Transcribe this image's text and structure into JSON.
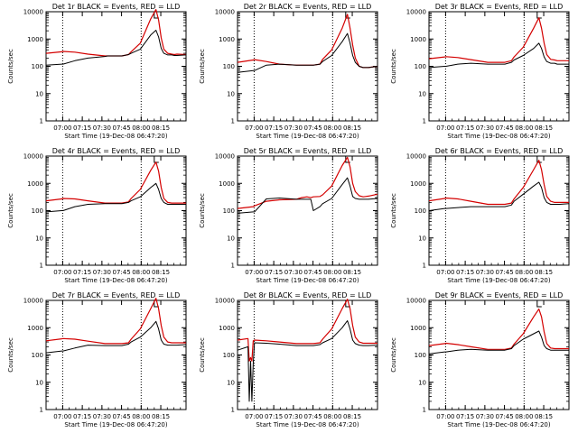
{
  "figure": {
    "background": "#ffffff",
    "events_color": "#000000",
    "lld_color": "#d40000"
  },
  "chart_data": [
    {
      "type": "line",
      "title": "Det 1r BLACK = Events, RED = LLD",
      "xlabel": "Start Time (19-Dec-08 06:47:20)",
      "ylabel": "Counts/sec",
      "x_ticks": [
        "07:00",
        "07:15",
        "07:30",
        "07:45",
        "08:00",
        "08:15"
      ],
      "y_ticks": [
        "1",
        "10",
        "100",
        "1000",
        "10000"
      ],
      "yscale": "log",
      "ylim": [
        1,
        10000
      ],
      "x_minutes": [
        0,
        12,
        13,
        22,
        32,
        45,
        47,
        49,
        53,
        56,
        58,
        63,
        65,
        72,
        80,
        84,
        86,
        88,
        90,
        93,
        96,
        98,
        100,
        107
      ],
      "events": [
        110,
        120,
        120,
        160,
        200,
        230,
        240,
        240,
        240,
        240,
        240,
        270,
        300,
        420,
        1400,
        2100,
        1200,
        450,
        300,
        260,
        260,
        250,
        250,
        260
      ],
      "lld": [
        300,
        340,
        350,
        330,
        280,
        240,
        240,
        240,
        240,
        240,
        240,
        270,
        340,
        700,
        5500,
        12000,
        5000,
        1100,
        420,
        300,
        280,
        270,
        280,
        270
      ]
    },
    {
      "type": "line",
      "title": "Det 2r BLACK = Events, RED = LLD",
      "xlabel": "Start Time (19-Dec-08 06:47:20)",
      "ylabel": "Counts/sec",
      "x_ticks": [
        "07:00",
        "07:15",
        "07:30",
        "07:45",
        "08:00",
        "08:15"
      ],
      "y_ticks": [
        "1",
        "10",
        "100",
        "1000",
        "10000"
      ],
      "yscale": "log",
      "ylim": [
        1,
        10000
      ],
      "x_minutes": [
        0,
        12,
        13,
        22,
        32,
        45,
        47,
        49,
        53,
        56,
        58,
        63,
        65,
        72,
        80,
        84,
        86,
        88,
        90,
        93,
        96,
        98,
        100,
        107
      ],
      "events": [
        60,
        70,
        70,
        110,
        120,
        110,
        110,
        110,
        110,
        110,
        110,
        120,
        150,
        250,
        800,
        1600,
        700,
        250,
        140,
        100,
        90,
        90,
        90,
        100
      ],
      "lld": [
        140,
        170,
        175,
        150,
        120,
        110,
        110,
        110,
        110,
        110,
        110,
        120,
        180,
        400,
        2500,
        8000,
        2500,
        600,
        200,
        100,
        90,
        90,
        90,
        100
      ]
    },
    {
      "type": "line",
      "title": "Det 3r BLACK = Events, RED = LLD",
      "xlabel": "Start Time (19-Dec-08 06:47:20)",
      "ylabel": "Counts/sec",
      "x_ticks": [
        "07:00",
        "07:15",
        "07:30",
        "07:45",
        "08:00",
        "08:15"
      ],
      "y_ticks": [
        "1",
        "10",
        "100",
        "1000",
        "10000"
      ],
      "yscale": "log",
      "ylim": [
        1,
        10000
      ],
      "x_minutes": [
        0,
        12,
        13,
        22,
        32,
        45,
        47,
        49,
        53,
        56,
        58,
        63,
        65,
        72,
        80,
        84,
        86,
        88,
        90,
        93,
        96,
        98,
        100,
        107
      ],
      "events": [
        90,
        100,
        100,
        120,
        130,
        120,
        120,
        120,
        120,
        120,
        120,
        140,
        170,
        250,
        450,
        700,
        450,
        220,
        150,
        130,
        130,
        120,
        120,
        120
      ],
      "lld": [
        190,
        220,
        225,
        210,
        175,
        140,
        140,
        140,
        140,
        140,
        140,
        160,
        220,
        500,
        2500,
        6000,
        2500,
        700,
        270,
        180,
        170,
        160,
        160,
        160
      ]
    },
    {
      "type": "line",
      "title": "Det 4r BLACK = Events, RED = LLD",
      "xlabel": "Start Time (19-Dec-08 06:47:20)",
      "ylabel": "Counts/sec",
      "x_ticks": [
        "07:00",
        "07:15",
        "07:30",
        "07:45",
        "08:00",
        "08:15"
      ],
      "y_ticks": [
        "1",
        "10",
        "100",
        "1000",
        "10000"
      ],
      "yscale": "log",
      "ylim": [
        1,
        10000
      ],
      "x_minutes": [
        0,
        12,
        13,
        22,
        32,
        45,
        47,
        49,
        53,
        56,
        58,
        63,
        65,
        72,
        80,
        84,
        86,
        88,
        90,
        93,
        96,
        98,
        100,
        107
      ],
      "events": [
        90,
        100,
        100,
        140,
        170,
        180,
        180,
        180,
        180,
        180,
        180,
        200,
        230,
        320,
        700,
        1000,
        600,
        280,
        200,
        170,
        170,
        170,
        170,
        170
      ],
      "lld": [
        230,
        270,
        280,
        270,
        230,
        190,
        190,
        190,
        190,
        190,
        190,
        210,
        280,
        600,
        3000,
        6000,
        2800,
        700,
        280,
        200,
        190,
        190,
        190,
        190
      ]
    },
    {
      "type": "line",
      "title": "Det 5r BLACK = Events, RED = LLD",
      "xlabel": "Start Time (19-Dec-08 06:47:20)",
      "ylabel": "Counts/sec",
      "x_ticks": [
        "07:00",
        "07:15",
        "07:30",
        "07:45",
        "08:00",
        "08:15"
      ],
      "y_ticks": [
        "1",
        "10",
        "100",
        "1000",
        "10000"
      ],
      "yscale": "log",
      "ylim": [
        1,
        10000
      ],
      "x_minutes": [
        0,
        12,
        13,
        22,
        32,
        45,
        47,
        49,
        53,
        56,
        58,
        63,
        65,
        72,
        80,
        84,
        86,
        88,
        90,
        93,
        96,
        98,
        100,
        107
      ],
      "events": [
        80,
        90,
        90,
        270,
        290,
        260,
        260,
        260,
        260,
        260,
        100,
        140,
        180,
        280,
        900,
        1600,
        800,
        330,
        280,
        260,
        260,
        260,
        260,
        280
      ],
      "lld": [
        120,
        140,
        150,
        220,
        250,
        260,
        280,
        300,
        320,
        300,
        320,
        330,
        380,
        800,
        4500,
        9000,
        4000,
        1000,
        500,
        350,
        320,
        330,
        340,
        400
      ]
    },
    {
      "type": "line",
      "title": "Det 6r BLACK = Events, RED = LLD",
      "xlabel": "Start Time (19-Dec-08 06:47:20)",
      "ylabel": "Counts/sec",
      "x_ticks": [
        "07:00",
        "07:15",
        "07:30",
        "07:45",
        "08:00",
        "08:15"
      ],
      "y_ticks": [
        "1",
        "10",
        "100",
        "1000",
        "10000"
      ],
      "yscale": "log",
      "ylim": [
        1,
        10000
      ],
      "x_minutes": [
        0,
        12,
        13,
        22,
        32,
        45,
        47,
        49,
        53,
        56,
        58,
        63,
        65,
        72,
        80,
        84,
        86,
        88,
        90,
        93,
        96,
        98,
        100,
        107
      ],
      "events": [
        100,
        120,
        120,
        130,
        140,
        140,
        140,
        140,
        140,
        140,
        140,
        160,
        220,
        400,
        800,
        1100,
        700,
        300,
        200,
        170,
        170,
        170,
        170,
        180
      ],
      "lld": [
        230,
        280,
        290,
        270,
        220,
        170,
        170,
        170,
        170,
        170,
        170,
        190,
        270,
        700,
        3200,
        7000,
        3200,
        900,
        330,
        220,
        200,
        200,
        200,
        200
      ]
    },
    {
      "type": "line",
      "title": "Det 7r BLACK = Events, RED = LLD",
      "xlabel": "Start Time (19-Dec-08 06:47:20)",
      "ylabel": "Counts/sec",
      "x_ticks": [
        "07:00",
        "07:15",
        "07:30",
        "07:45",
        "08:00",
        "08:15"
      ],
      "y_ticks": [
        "1",
        "10",
        "100",
        "1000",
        "10000"
      ],
      "yscale": "log",
      "ylim": [
        1,
        10000
      ],
      "x_minutes": [
        0,
        12,
        13,
        22,
        32,
        45,
        47,
        49,
        53,
        56,
        58,
        63,
        65,
        72,
        80,
        84,
        86,
        88,
        90,
        93,
        96,
        98,
        100,
        107
      ],
      "events": [
        120,
        140,
        140,
        180,
        230,
        220,
        220,
        220,
        220,
        220,
        220,
        250,
        300,
        450,
        1000,
        1700,
        900,
        350,
        250,
        230,
        230,
        230,
        230,
        240
      ],
      "lld": [
        330,
        390,
        400,
        380,
        320,
        260,
        260,
        260,
        260,
        260,
        260,
        280,
        380,
        900,
        5000,
        12000,
        5000,
        1200,
        450,
        300,
        280,
        280,
        280,
        280
      ]
    },
    {
      "type": "line",
      "title": "Det 8r BLACK = Events, RED = LLD",
      "xlabel": "Start Time (19-Dec-08 06:47:20)",
      "ylabel": "Counts/sec",
      "x_ticks": [
        "07:00",
        "07:15",
        "07:30",
        "07:45",
        "08:00",
        "08:15"
      ],
      "y_ticks": [
        "1",
        "10",
        "100",
        "1000",
        "10000"
      ],
      "yscale": "log",
      "ylim": [
        1,
        10000
      ],
      "x_minutes": [
        0,
        8,
        9,
        10,
        11,
        12,
        13,
        22,
        32,
        45,
        47,
        49,
        53,
        56,
        58,
        63,
        65,
        72,
        80,
        84,
        86,
        88,
        90,
        93,
        96,
        98,
        100,
        107
      ],
      "events": [
        150,
        200,
        2,
        60,
        2,
        50,
        280,
        270,
        250,
        220,
        220,
        220,
        220,
        220,
        220,
        240,
        280,
        400,
        1000,
        1800,
        900,
        350,
        260,
        230,
        220,
        220,
        220,
        230
      ],
      "lld": [
        350,
        400,
        60,
        80,
        60,
        330,
        350,
        330,
        300,
        260,
        260,
        260,
        260,
        260,
        260,
        280,
        380,
        900,
        5000,
        11000,
        5000,
        1200,
        450,
        300,
        270,
        270,
        270,
        270
      ]
    },
    {
      "type": "line",
      "title": "Det 9r BLACK = Events, RED = LLD",
      "xlabel": "Start Time (19-Dec-08 06:47:20)",
      "ylabel": "Counts/sec",
      "x_ticks": [
        "07:00",
        "07:15",
        "07:30",
        "07:45",
        "08:00",
        "08:15"
      ],
      "y_ticks": [
        "1",
        "10",
        "100",
        "1000",
        "10000"
      ],
      "yscale": "log",
      "ylim": [
        1,
        10000
      ],
      "x_minutes": [
        0,
        12,
        13,
        22,
        32,
        45,
        47,
        49,
        53,
        56,
        58,
        63,
        65,
        72,
        80,
        84,
        86,
        88,
        90,
        93,
        96,
        98,
        100,
        107
      ],
      "events": [
        110,
        130,
        130,
        150,
        160,
        150,
        150,
        150,
        150,
        150,
        150,
        170,
        220,
        380,
        600,
        750,
        450,
        220,
        170,
        150,
        150,
        150,
        150,
        150
      ],
      "lld": [
        220,
        260,
        270,
        240,
        200,
        160,
        160,
        160,
        160,
        160,
        160,
        180,
        250,
        600,
        2500,
        4800,
        2500,
        700,
        260,
        180,
        170,
        170,
        170,
        170
      ]
    }
  ]
}
